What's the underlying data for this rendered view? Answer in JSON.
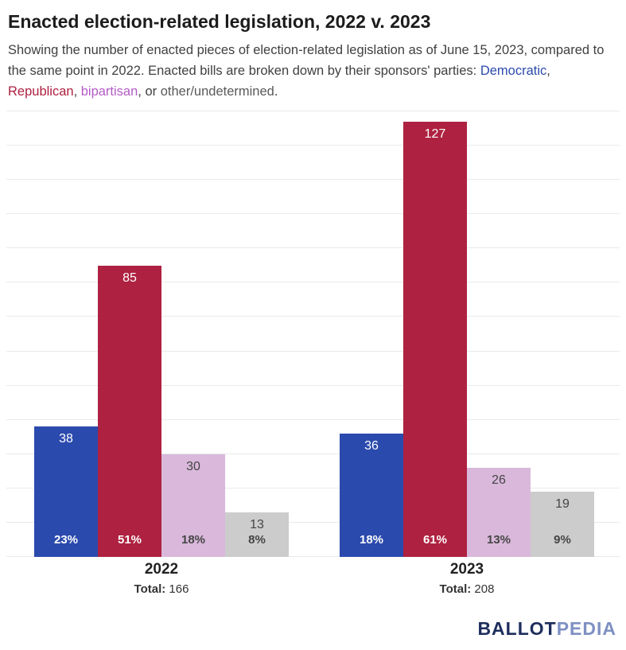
{
  "header": {
    "title": "Enacted election-related legislation, 2022 v. 2023"
  },
  "subtitle": {
    "lead": "Showing the number of enacted pieces of election-related legislation as of June 15, 2023, compared to the same point in 2022. Enacted bills are broken down by their sponsors' parties: ",
    "democratic": "Democratic",
    "sep1": ", ",
    "republican": "Republican",
    "sep2": ", ",
    "bipartisan": "bipartisan",
    "sep3": ", or ",
    "other": "other/undetermined",
    "period": "."
  },
  "chart_data": {
    "type": "bar",
    "title": "Enacted election-related legislation, 2022 v. 2023",
    "categories": [
      "2022",
      "2023"
    ],
    "series": [
      {
        "name": "Democratic",
        "color": "#2b4aad",
        "label_color": "#ffffff",
        "values": [
          38,
          36
        ],
        "percent_labels": [
          "23%",
          "18%"
        ]
      },
      {
        "name": "Republican",
        "color": "#ae2140",
        "label_color": "#ffffff",
        "values": [
          85,
          127
        ],
        "percent_labels": [
          "51%",
          "61%"
        ]
      },
      {
        "name": "bipartisan",
        "color": "#d9b8db",
        "label_color": "#454545",
        "values": [
          30,
          26
        ],
        "percent_labels": [
          "18%",
          "13%"
        ]
      },
      {
        "name": "other/undetermined",
        "color": "#cccccc",
        "label_color": "#454545",
        "values": [
          13,
          19
        ],
        "percent_labels": [
          "8%",
          "9%"
        ]
      }
    ],
    "totals": [
      166,
      208
    ],
    "total_label": "Total:",
    "xlabel": "",
    "ylabel": "",
    "ylim": [
      0,
      130
    ],
    "grid": true,
    "grid_step": 10,
    "legend_position": "inline-in-subtitle"
  },
  "colors": {
    "democratic_text": "#2b4aad",
    "republican_text": "#ae2140",
    "bipartisan_text": "#b45cc6",
    "other_text": "#595959",
    "grid": "#eaeaea",
    "logo_dark": "#1d2d5c",
    "logo_light": "#7e90c3"
  },
  "footer": {
    "logo_part1": "BALLOT",
    "logo_part2": "PEDIA"
  }
}
